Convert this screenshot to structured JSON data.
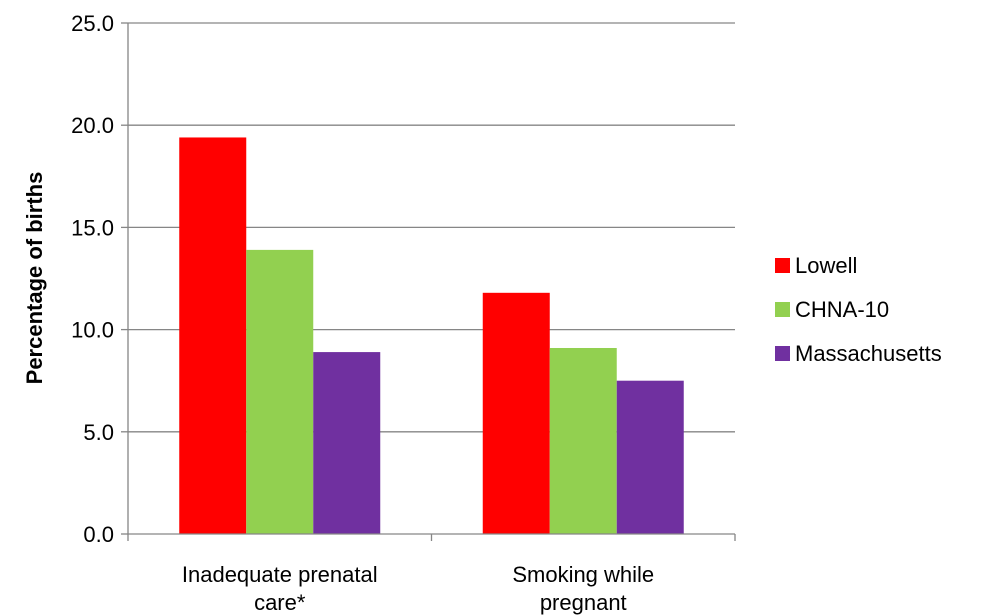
{
  "chart_data": {
    "type": "bar",
    "categories": [
      [
        "Inadequate prenatal",
        "care*"
      ],
      [
        "Smoking while",
        "pregnant"
      ]
    ],
    "series": [
      {
        "name": "Lowell",
        "values": [
          19.4,
          11.8
        ],
        "color": "#ff0000"
      },
      {
        "name": "CHNA-10",
        "values": [
          13.9,
          9.1
        ],
        "color": "#92d050"
      },
      {
        "name": "Massachusetts",
        "values": [
          8.9,
          7.5
        ],
        "color": "#7030a0"
      }
    ],
    "ylabel": "Percentage of births",
    "ylim": [
      0,
      25
    ],
    "yticks": [
      "0.0",
      "5.0",
      "10.0",
      "15.0",
      "20.0",
      "25.0"
    ],
    "ytick_values": [
      0,
      5,
      10,
      15,
      20,
      25
    ],
    "grid": true,
    "legend_position": "right"
  }
}
